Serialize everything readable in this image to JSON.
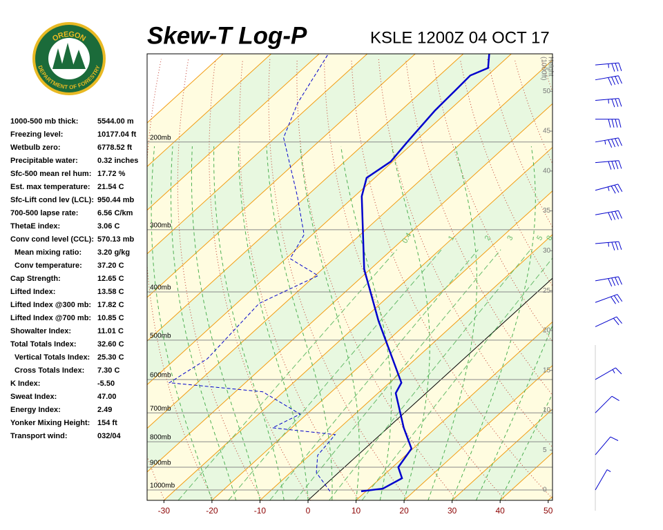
{
  "logo": {
    "top": "OREGON",
    "bottom": "DEPARTMENT OF FORESTRY"
  },
  "stats": [
    [
      "1000-500 mb thick:",
      "5544.00 m"
    ],
    [
      "Freezing level:",
      "10177.04 ft"
    ],
    [
      "Wetbulb zero:",
      "6778.52 ft"
    ],
    [
      "Precipitable water:",
      "0.32 inches"
    ],
    [
      "Sfc-500 mean rel hum:",
      "17.72 %"
    ],
    [
      "Est. max temperature:",
      "21.54 C"
    ],
    [
      "Sfc-Lift cond lev (LCL):",
      "950.44 mb"
    ],
    [
      "700-500 lapse rate:",
      "6.56 C/km"
    ],
    [
      "ThetaE index:",
      "3.06 C"
    ],
    [
      "Conv cond level (CCL):",
      "570.13 mb"
    ],
    [
      "Mean mixing ratio:",
      "3.20 g/kg"
    ],
    [
      "Conv temperature:",
      "37.20 C"
    ],
    [
      "Cap Strength:",
      "12.65 C"
    ],
    [
      "Lifted Index:",
      "13.58 C"
    ],
    [
      "Lifted Index @300 mb:",
      "17.82 C"
    ],
    [
      "Lifted Index @700 mb:",
      "10.85 C"
    ],
    [
      "Showalter Index:",
      "11.01 C"
    ],
    [
      "Total Totals Index:",
      "32.60 C"
    ],
    [
      "Vertical Totals Index:",
      "25.30 C"
    ],
    [
      "Cross Totals Index:",
      "7.30 C"
    ],
    [
      "K Index:",
      "-5.50"
    ],
    [
      "Sweat Index:",
      "47.00"
    ],
    [
      "Energy Index:",
      "2.49"
    ],
    [
      "Yonker Mixing Height:",
      "154 ft"
    ],
    [
      "Transport wind:",
      "032/04"
    ]
  ],
  "chart_data": {
    "type": "skewt",
    "title": "Skew-T Log-P",
    "subtitle": "KSLE 1200Z 04 OCT 17",
    "xlim": [
      -33.5,
      50.9
    ],
    "xticks": [
      -30,
      -20,
      -10,
      0,
      10,
      20,
      30,
      40,
      50
    ],
    "ylim": [
      1049,
      133
    ],
    "log_y": true,
    "yticks": [
      {
        "value": 200,
        "label": "200mb"
      },
      {
        "value": 300,
        "label": "300mb"
      },
      {
        "value": 400,
        "label": "400mb"
      },
      {
        "value": 500,
        "label": "500mb"
      },
      {
        "value": 600,
        "label": "600mb"
      },
      {
        "value": 700,
        "label": "700mb"
      },
      {
        "value": 800,
        "label": "800mb"
      },
      {
        "value": 900,
        "label": "900mb"
      },
      {
        "value": 1000,
        "label": "1000mb"
      }
    ],
    "y2lim": [
      -1.3,
      54.7
    ],
    "y2ticks": [
      0,
      5,
      10,
      15,
      20,
      25,
      30,
      35,
      40,
      45,
      50
    ],
    "y2_label_lines": [
      "Height",
      "(1000ft)"
    ],
    "mixing_ratio_labels": [
      0.4,
      1,
      2,
      3,
      5,
      8
    ],
    "series": [
      {
        "color": "#0000cc",
        "style": "solid",
        "pressure": [
          1006,
          994,
          947,
          900,
          826,
          750,
          639,
          609,
          457,
          360,
          257,
          236,
          219,
          199,
          173,
          157,
          147,
          142,
          133
        ],
        "values": [
          9.0,
          12.9,
          14.5,
          11.2,
          9.7,
          3.3,
          -6.3,
          -7.5,
          -26.5,
          -41.3,
          -58.5,
          -61.7,
          -60.4,
          -61.5,
          -62.9,
          -63.3,
          -63.6,
          -61.6,
          -64.6
        ]
      },
      {
        "color": "#0000cc",
        "style": "dashed",
        "pressure": [
          1006,
          923,
          852,
          774,
          750,
          704,
          635,
          609,
          545,
          422,
          371,
          343,
          307,
          257,
          196,
          167,
          133
        ],
        "values": [
          2.5,
          -4.6,
          -8.3,
          -9.4,
          -24.0,
          -21.4,
          -34.3,
          -55.8,
          -53.4,
          -55.3,
          -49.4,
          -59.1,
          -61.7,
          -71.9,
          -88.2,
          -93.2,
          -98.1
        ]
      }
    ],
    "winds": {
      "color": "#0000cc",
      "pressure": [
        140,
        150,
        165,
        180,
        200,
        220,
        250,
        280,
        320,
        380,
        420,
        470,
        600,
        700,
        850,
        1000
      ],
      "direction": [
        85,
        80,
        85,
        90,
        80,
        85,
        75,
        80,
        85,
        80,
        70,
        65,
        60,
        45,
        40,
        30
      ],
      "speed": [
        35,
        40,
        35,
        40,
        45,
        40,
        35,
        40,
        35,
        40,
        30,
        20,
        15,
        10,
        10,
        5
      ]
    }
  }
}
